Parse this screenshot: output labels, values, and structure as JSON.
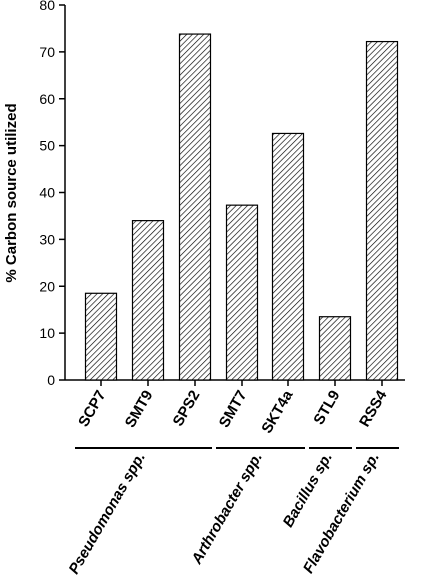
{
  "chart_data": {
    "type": "bar",
    "title": "",
    "xlabel": "",
    "ylabel": "% Carbon source utilized",
    "ylim": [
      0,
      80
    ],
    "yticks": [
      0,
      10,
      20,
      30,
      40,
      50,
      60,
      70,
      80
    ],
    "grid": false,
    "bar_fill": "diagonal-hatch",
    "bar_color": "#000000",
    "categories": [
      "SCP7",
      "SMT9",
      "SPS2",
      "SMT7",
      "SKT4a",
      "STL9",
      "RSS4"
    ],
    "values": [
      18.5,
      34,
      73.8,
      37.3,
      52.6,
      13.5,
      72.2
    ],
    "groups": [
      {
        "label": "Pseudomonas spp.",
        "categories": [
          "SCP7",
          "SMT9",
          "SPS2"
        ]
      },
      {
        "label": "Arthrobacter spp.",
        "categories": [
          "SMT7",
          "SKT4a"
        ]
      },
      {
        "label": "Bacillus sp.",
        "categories": [
          "STL9"
        ]
      },
      {
        "label": "Flavobacterium sp.",
        "categories": [
          "RSS4"
        ]
      }
    ]
  }
}
